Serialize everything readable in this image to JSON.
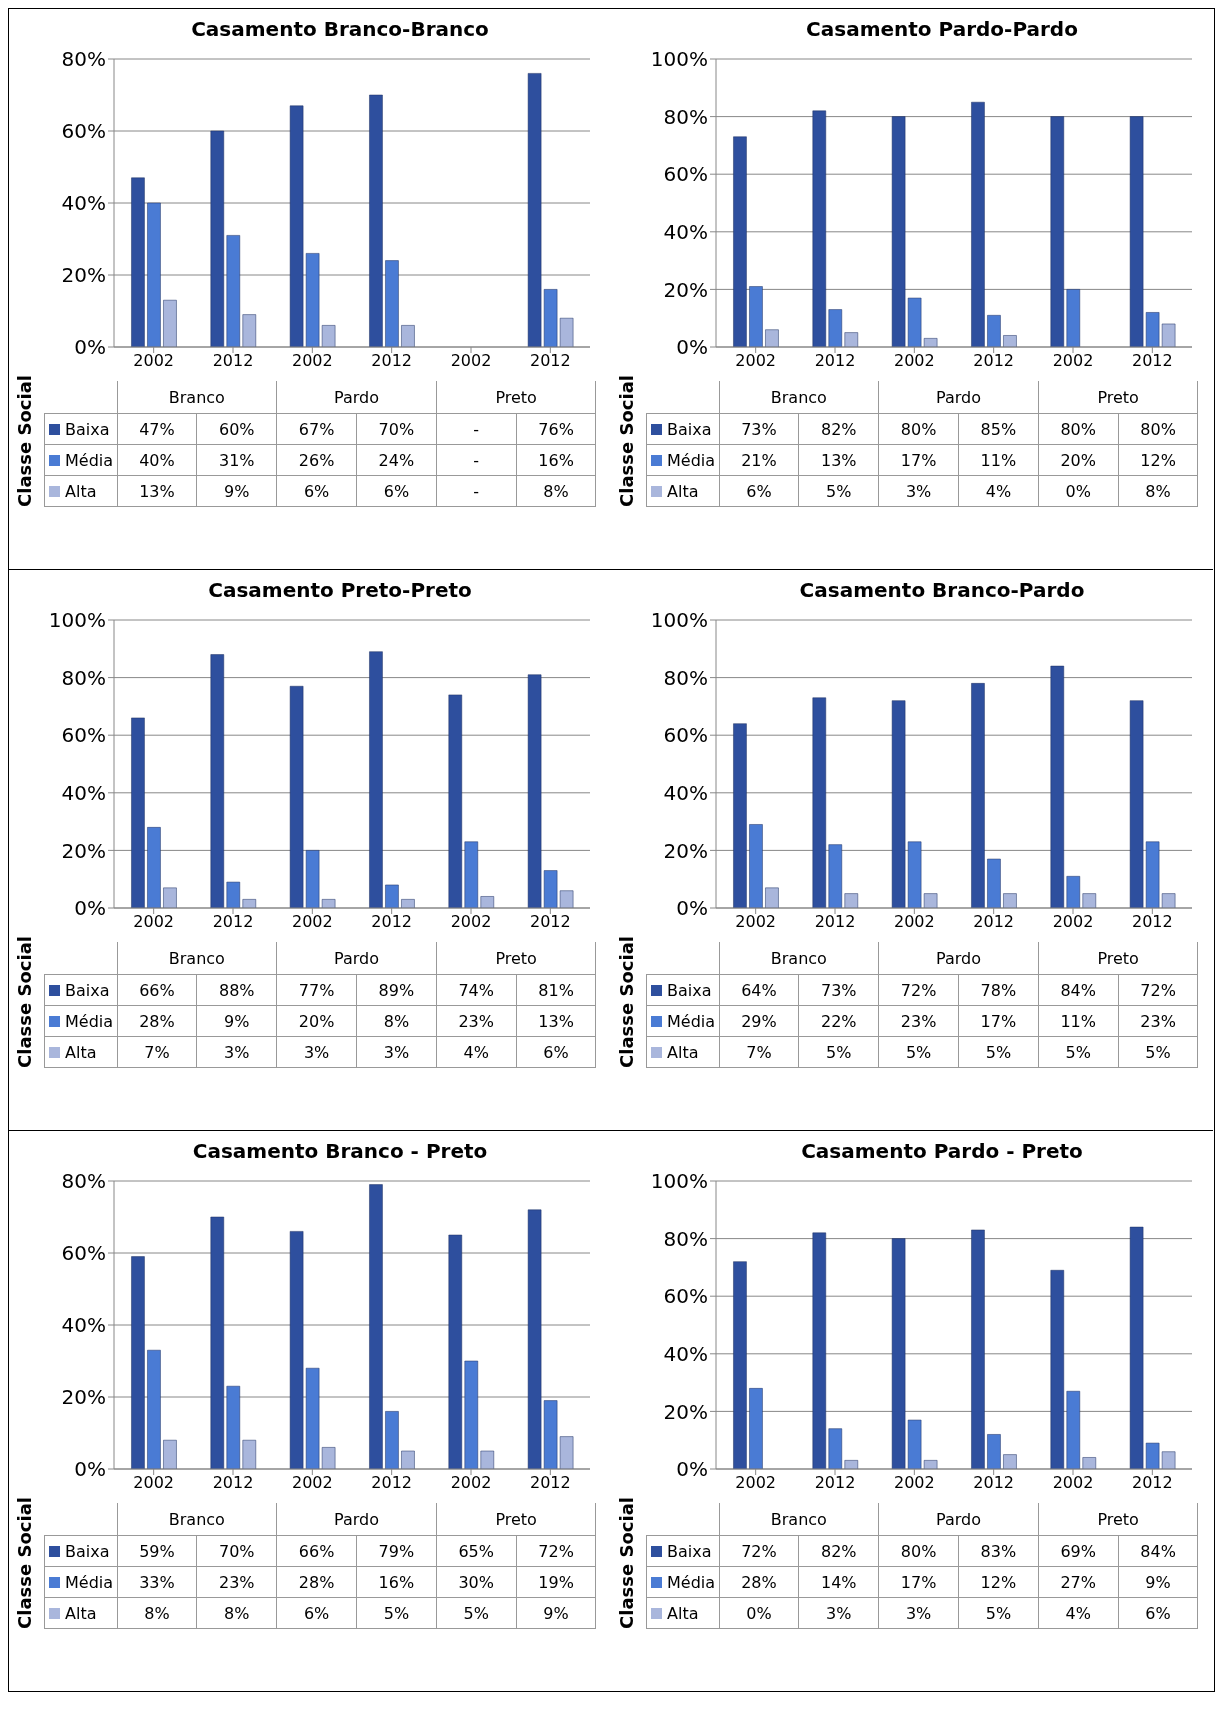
{
  "chart_data": [
    {
      "type": "bar",
      "title": "Casamento Branco-Branco",
      "ylabel": "Classe Social",
      "categories": [
        "2002",
        "2012",
        "2002",
        "2012",
        "2002",
        "2012"
      ],
      "annotations": [
        "Branco",
        "Pardo",
        "Preto"
      ],
      "ylim": [
        0,
        80
      ],
      "yticks": [
        {
          "value": 0,
          "label": "0%"
        },
        {
          "value": 20,
          "label": "20%"
        },
        {
          "value": 40,
          "label": "40%"
        },
        {
          "value": 60,
          "label": "60%"
        },
        {
          "value": 80,
          "label": "80%"
        }
      ],
      "grid": "y",
      "legend": "bottom left",
      "series": [
        {
          "name": "Baixa",
          "color": "#2e4f9e",
          "values": [
            47,
            60,
            67,
            70,
            null,
            76
          ],
          "value_labels": [
            "47%",
            "60%",
            "67%",
            "70%",
            "-",
            "76%"
          ]
        },
        {
          "name": "Média",
          "color": "#4a7bd4",
          "values": [
            40,
            31,
            26,
            24,
            null,
            16
          ],
          "value_labels": [
            "40%",
            "31%",
            "26%",
            "24%",
            "-",
            "16%"
          ]
        },
        {
          "name": "Alta",
          "color": "#a9b6dc",
          "values": [
            13,
            9,
            6,
            6,
            null,
            8
          ],
          "value_labels": [
            "13%",
            "9%",
            "6%",
            "6%",
            "-",
            "8%"
          ]
        }
      ]
    },
    {
      "type": "bar",
      "title": "Casamento Pardo-Pardo",
      "ylabel": "Classe Social",
      "categories": [
        "2002",
        "2012",
        "2002",
        "2012",
        "2002",
        "2012"
      ],
      "annotations": [
        "Branco",
        "Pardo",
        "Preto"
      ],
      "ylim": [
        0,
        100
      ],
      "yticks": [
        {
          "value": 0,
          "label": "0%"
        },
        {
          "value": 20,
          "label": "20%"
        },
        {
          "value": 40,
          "label": "40%"
        },
        {
          "value": 60,
          "label": "60%"
        },
        {
          "value": 80,
          "label": "80%"
        },
        {
          "value": 100,
          "label": "100%"
        }
      ],
      "grid": "y",
      "legend": "bottom left",
      "series": [
        {
          "name": "Baixa",
          "color": "#2e4f9e",
          "values": [
            73,
            82,
            80,
            85,
            80,
            80
          ],
          "value_labels": [
            "73%",
            "82%",
            "80%",
            "85%",
            "80%",
            "80%"
          ]
        },
        {
          "name": "Média",
          "color": "#4a7bd4",
          "values": [
            21,
            13,
            17,
            11,
            20,
            12
          ],
          "value_labels": [
            "21%",
            "13%",
            "17%",
            "11%",
            "20%",
            "12%"
          ]
        },
        {
          "name": "Alta",
          "color": "#a9b6dc",
          "values": [
            6,
            5,
            3,
            4,
            0,
            8
          ],
          "value_labels": [
            "6%",
            "5%",
            "3%",
            "4%",
            "0%",
            "8%"
          ]
        }
      ]
    },
    {
      "type": "bar",
      "title": "Casamento Preto-Preto",
      "ylabel": "Classe Social",
      "categories": [
        "2002",
        "2012",
        "2002",
        "2012",
        "2002",
        "2012"
      ],
      "annotations": [
        "Branco",
        "Pardo",
        "Preto"
      ],
      "ylim": [
        0,
        100
      ],
      "yticks": [
        {
          "value": 0,
          "label": "0%"
        },
        {
          "value": 20,
          "label": "20%"
        },
        {
          "value": 40,
          "label": "40%"
        },
        {
          "value": 60,
          "label": "60%"
        },
        {
          "value": 80,
          "label": "80%"
        },
        {
          "value": 100,
          "label": "100%"
        }
      ],
      "grid": "y",
      "legend": "bottom left",
      "series": [
        {
          "name": "Baixa",
          "color": "#2e4f9e",
          "values": [
            66,
            88,
            77,
            89,
            74,
            81
          ],
          "value_labels": [
            "66%",
            "88%",
            "77%",
            "89%",
            "74%",
            "81%"
          ]
        },
        {
          "name": "Média",
          "color": "#4a7bd4",
          "values": [
            28,
            9,
            20,
            8,
            23,
            13
          ],
          "value_labels": [
            "28%",
            "9%",
            "20%",
            "8%",
            "23%",
            "13%"
          ]
        },
        {
          "name": "Alta",
          "color": "#a9b6dc",
          "values": [
            7,
            3,
            3,
            3,
            4,
            6
          ],
          "value_labels": [
            "7%",
            "3%",
            "3%",
            "3%",
            "4%",
            "6%"
          ]
        }
      ]
    },
    {
      "type": "bar",
      "title": "Casamento Branco-Pardo",
      "ylabel": "Classe Social",
      "categories": [
        "2002",
        "2012",
        "2002",
        "2012",
        "2002",
        "2012"
      ],
      "annotations": [
        "Branco",
        "Pardo",
        "Preto"
      ],
      "ylim": [
        0,
        100
      ],
      "yticks": [
        {
          "value": 0,
          "label": "0%"
        },
        {
          "value": 20,
          "label": "20%"
        },
        {
          "value": 40,
          "label": "40%"
        },
        {
          "value": 60,
          "label": "60%"
        },
        {
          "value": 80,
          "label": "80%"
        },
        {
          "value": 100,
          "label": "100%"
        }
      ],
      "grid": "y",
      "legend": "bottom left",
      "series": [
        {
          "name": "Baixa",
          "color": "#2e4f9e",
          "values": [
            64,
            73,
            72,
            78,
            84,
            72
          ],
          "value_labels": [
            "64%",
            "73%",
            "72%",
            "78%",
            "84%",
            "72%"
          ]
        },
        {
          "name": "Média",
          "color": "#4a7bd4",
          "values": [
            29,
            22,
            23,
            17,
            11,
            23
          ],
          "value_labels": [
            "29%",
            "22%",
            "23%",
            "17%",
            "11%",
            "23%"
          ]
        },
        {
          "name": "Alta",
          "color": "#a9b6dc",
          "values": [
            7,
            5,
            5,
            5,
            5,
            5
          ],
          "value_labels": [
            "7%",
            "5%",
            "5%",
            "5%",
            "5%",
            "5%"
          ]
        }
      ]
    },
    {
      "type": "bar",
      "title": "Casamento Branco - Preto",
      "ylabel": "Classe Social",
      "categories": [
        "2002",
        "2012",
        "2002",
        "2012",
        "2002",
        "2012"
      ],
      "annotations": [
        "Branco",
        "Pardo",
        "Preto"
      ],
      "ylim": [
        0,
        80
      ],
      "yticks": [
        {
          "value": 0,
          "label": "0%"
        },
        {
          "value": 20,
          "label": "20%"
        },
        {
          "value": 40,
          "label": "40%"
        },
        {
          "value": 60,
          "label": "60%"
        },
        {
          "value": 80,
          "label": "80%"
        }
      ],
      "grid": "y",
      "legend": "bottom left",
      "series": [
        {
          "name": "Baixa",
          "color": "#2e4f9e",
          "values": [
            59,
            70,
            66,
            79,
            65,
            72
          ],
          "value_labels": [
            "59%",
            "70%",
            "66%",
            "79%",
            "65%",
            "72%"
          ]
        },
        {
          "name": "Média",
          "color": "#4a7bd4",
          "values": [
            33,
            23,
            28,
            16,
            30,
            19
          ],
          "value_labels": [
            "33%",
            "23%",
            "28%",
            "16%",
            "30%",
            "19%"
          ]
        },
        {
          "name": "Alta",
          "color": "#a9b6dc",
          "values": [
            8,
            8,
            6,
            5,
            5,
            9
          ],
          "value_labels": [
            "8%",
            "8%",
            "6%",
            "5%",
            "5%",
            "9%"
          ]
        }
      ]
    },
    {
      "type": "bar",
      "title": "Casamento Pardo - Preto",
      "ylabel": "Classe Social",
      "categories": [
        "2002",
        "2012",
        "2002",
        "2012",
        "2002",
        "2012"
      ],
      "annotations": [
        "Branco",
        "Pardo",
        "Preto"
      ],
      "ylim": [
        0,
        100
      ],
      "yticks": [
        {
          "value": 0,
          "label": "0%"
        },
        {
          "value": 20,
          "label": "20%"
        },
        {
          "value": 40,
          "label": "40%"
        },
        {
          "value": 60,
          "label": "60%"
        },
        {
          "value": 80,
          "label": "80%"
        },
        {
          "value": 100,
          "label": "100%"
        }
      ],
      "grid": "y",
      "legend": "bottom left",
      "series": [
        {
          "name": "Baixa",
          "color": "#2e4f9e",
          "values": [
            72,
            82,
            80,
            83,
            69,
            84
          ],
          "value_labels": [
            "72%",
            "82%",
            "80%",
            "83%",
            "69%",
            "84%"
          ]
        },
        {
          "name": "Média",
          "color": "#4a7bd4",
          "values": [
            28,
            14,
            17,
            12,
            27,
            9
          ],
          "value_labels": [
            "28%",
            "14%",
            "17%",
            "12%",
            "27%",
            "9%"
          ]
        },
        {
          "name": "Alta",
          "color": "#a9b6dc",
          "values": [
            0,
            3,
            3,
            5,
            4,
            6
          ],
          "value_labels": [
            "0%",
            "3%",
            "3%",
            "5%",
            "4%",
            "6%"
          ]
        }
      ]
    }
  ]
}
